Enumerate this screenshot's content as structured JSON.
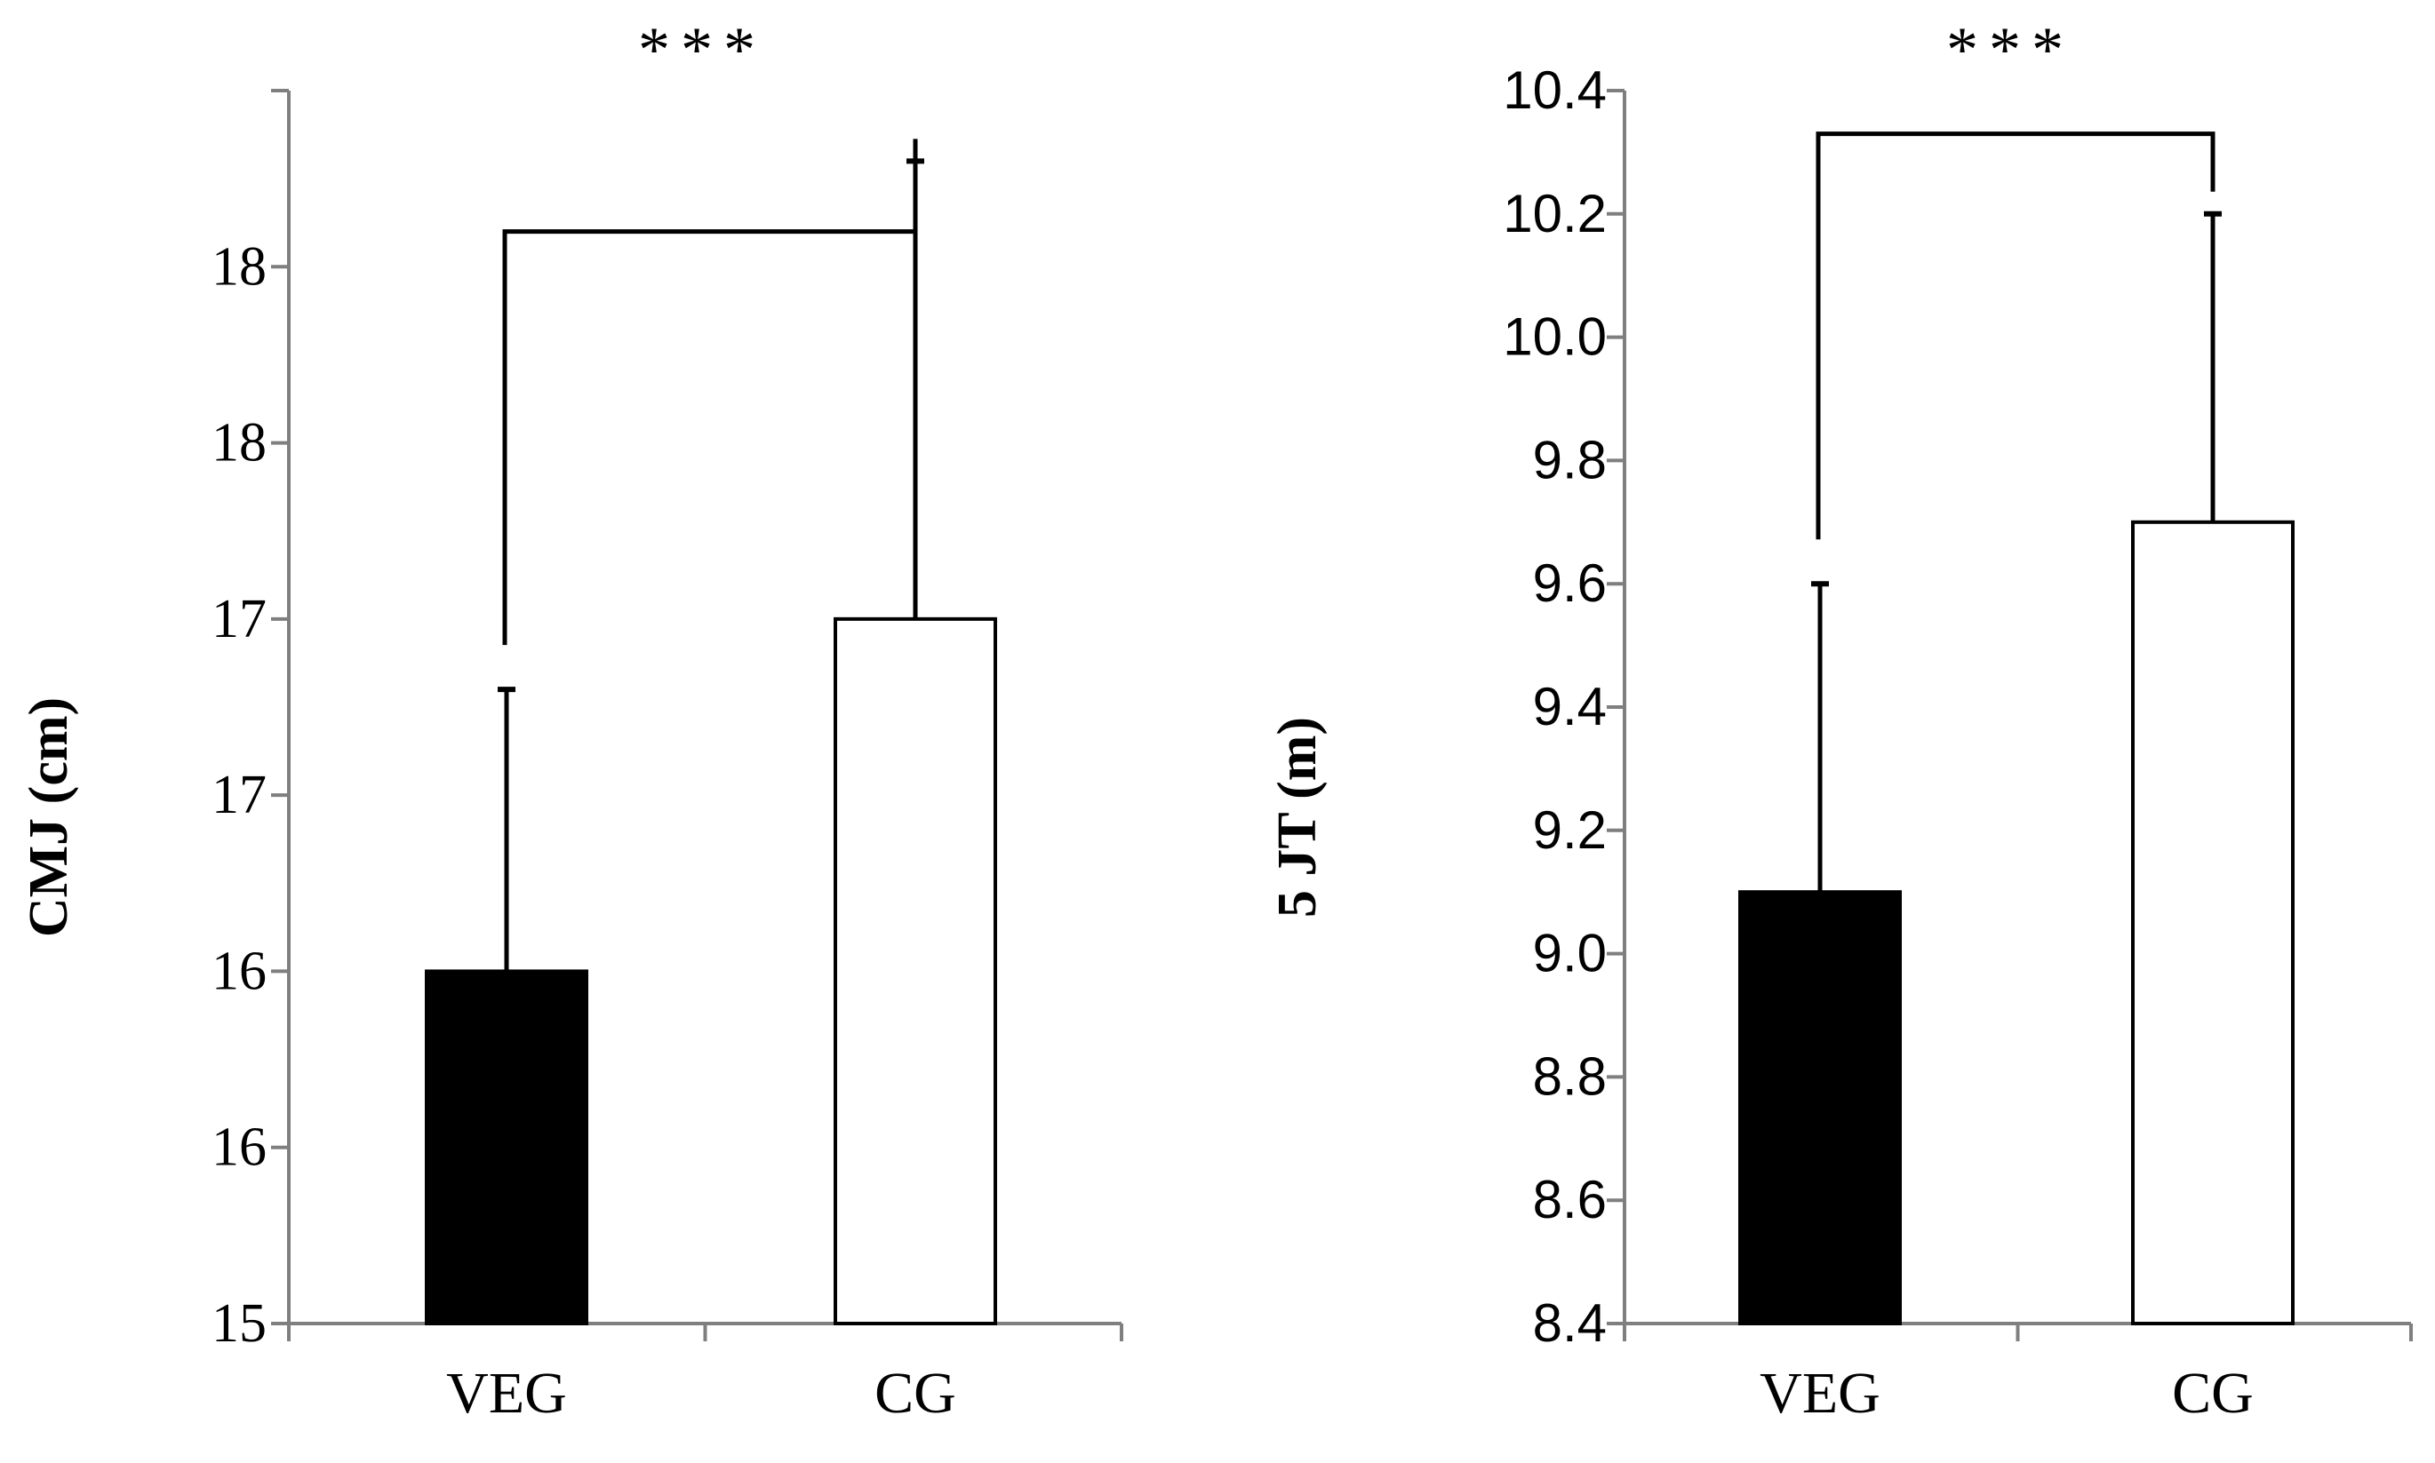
{
  "chart_data": [
    {
      "type": "bar",
      "title": "",
      "xlabel": "",
      "ylabel": "CMJ  (cm)",
      "categories": [
        "VEG",
        "CG"
      ],
      "values": [
        16.0,
        17.0
      ],
      "error_upper": [
        16.8,
        18.3
      ],
      "ylim": [
        15,
        18.5
      ],
      "yticks": [
        15,
        15.5,
        16,
        16.5,
        17,
        17.5,
        18,
        18.5
      ],
      "ytick_labels": [
        "15",
        "16",
        "16",
        "17",
        "17",
        "18",
        "18",
        ""
      ],
      "bar_colors": [
        "#000000",
        "#ffffff"
      ],
      "significance": "***",
      "bracket_level": 18.1,
      "grid": false
    },
    {
      "type": "bar",
      "title": "",
      "xlabel": "",
      "ylabel": "5 JT (m)",
      "categories": [
        "VEG",
        "CG"
      ],
      "values": [
        9.1,
        9.7
      ],
      "error_upper": [
        9.6,
        10.2
      ],
      "ylim": [
        8.4,
        10.4
      ],
      "yticks": [
        8.4,
        8.6,
        8.8,
        9.0,
        9.2,
        9.4,
        9.6,
        9.8,
        10.0,
        10.2,
        10.4
      ],
      "ytick_labels": [
        "8.4",
        "8.6",
        "8.8",
        "9.0",
        "9.2",
        "9.4",
        "9.6",
        "9.8",
        "10.0",
        "10.2",
        "10.4"
      ],
      "bar_colors": [
        "#000000",
        "#ffffff"
      ],
      "significance": "***",
      "bracket_level": 10.33,
      "grid": false
    }
  ]
}
